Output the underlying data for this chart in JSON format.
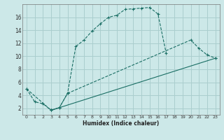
{
  "xlabel": "Humidex (Indice chaleur)",
  "bg_color": "#cce8e8",
  "grid_color": "#aacece",
  "line_color": "#1a6e64",
  "xlim": [
    -0.5,
    23.5
  ],
  "ylim": [
    1.0,
    18.0
  ],
  "xticks": [
    0,
    1,
    2,
    3,
    4,
    5,
    6,
    7,
    8,
    9,
    10,
    11,
    12,
    13,
    14,
    15,
    16,
    17,
    18,
    19,
    20,
    21,
    22,
    23
  ],
  "yticks": [
    2,
    4,
    6,
    8,
    10,
    12,
    14,
    16
  ],
  "line1_x": [
    0,
    1,
    2,
    3,
    4,
    5,
    6,
    7,
    8,
    9,
    10,
    11,
    12,
    13,
    14,
    15,
    16,
    17
  ],
  "line1_y": [
    5.0,
    3.0,
    2.7,
    1.7,
    2.1,
    4.3,
    11.5,
    12.5,
    13.9,
    15.0,
    16.0,
    16.3,
    17.2,
    17.3,
    17.4,
    17.5,
    16.5,
    10.5
  ],
  "line2_x": [
    0,
    3,
    4,
    5,
    20,
    21,
    22,
    23
  ],
  "line2_y": [
    5.0,
    1.7,
    2.1,
    4.3,
    12.5,
    11.2,
    10.2,
    9.7
  ],
  "line3_x": [
    3,
    23
  ],
  "line3_y": [
    1.7,
    9.7
  ]
}
